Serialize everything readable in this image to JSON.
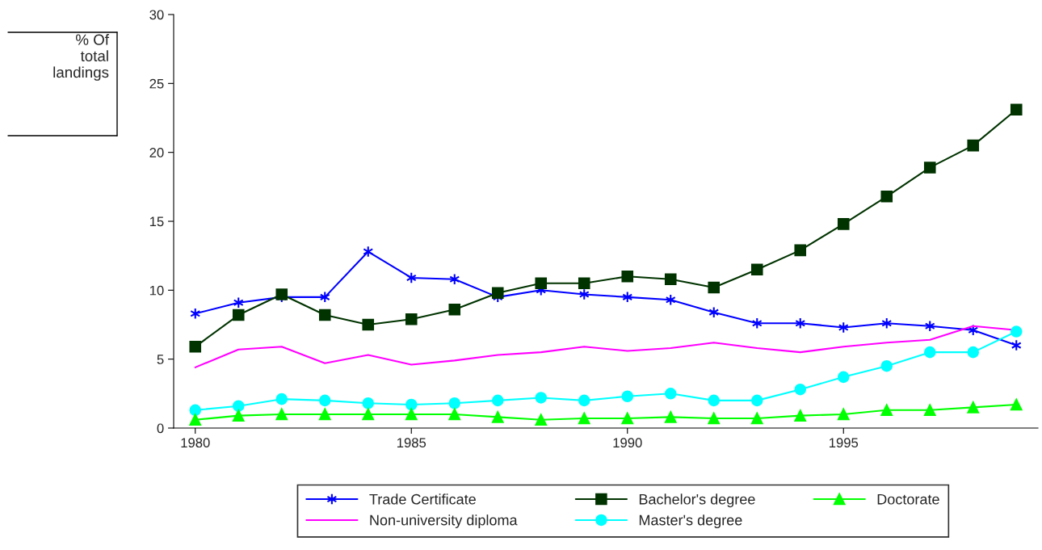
{
  "chart_data": {
    "type": "line",
    "ylabel": "% Of\ntotal\nlandings",
    "x": [
      1980,
      1981,
      1982,
      1983,
      1984,
      1985,
      1986,
      1987,
      1988,
      1989,
      1990,
      1991,
      1992,
      1993,
      1994,
      1995,
      1996,
      1997,
      1998,
      1999
    ],
    "xlim": [
      1979.5,
      1999.5
    ],
    "xticks": [
      1980,
      1985,
      1990,
      1995
    ],
    "ylim": [
      0,
      30
    ],
    "yticks": [
      0,
      5,
      10,
      15,
      20,
      25,
      30
    ],
    "grid": false,
    "legend": "bottom",
    "series": [
      {
        "name": "Trade Certificate",
        "color": "#0000ff",
        "marker": "cross",
        "values": [
          8.3,
          9.1,
          9.5,
          9.5,
          12.8,
          10.9,
          10.8,
          9.5,
          10.0,
          9.7,
          9.5,
          9.3,
          8.4,
          7.6,
          7.6,
          7.3,
          7.6,
          7.4,
          7.1,
          6.0
        ]
      },
      {
        "name": "Non-university diploma",
        "color": "#ff00ff",
        "marker": "none",
        "values": [
          4.4,
          5.7,
          5.9,
          4.7,
          5.3,
          4.6,
          4.9,
          5.3,
          5.5,
          5.9,
          5.6,
          5.8,
          6.2,
          5.8,
          5.5,
          5.9,
          6.2,
          6.4,
          7.4,
          7.1
        ]
      },
      {
        "name": "Bachelor's degree",
        "color": "#003300",
        "marker": "square",
        "values": [
          5.9,
          8.2,
          9.7,
          8.2,
          7.5,
          7.9,
          8.6,
          9.8,
          10.5,
          10.5,
          11.0,
          10.8,
          10.2,
          11.5,
          12.9,
          14.8,
          16.8,
          18.9,
          20.5,
          23.1
        ]
      },
      {
        "name": "Master's degree",
        "color": "#00ffff",
        "marker": "circle",
        "values": [
          1.3,
          1.6,
          2.1,
          2.0,
          1.8,
          1.7,
          1.8,
          2.0,
          2.2,
          2.0,
          2.3,
          2.5,
          2.0,
          2.0,
          2.8,
          3.7,
          4.5,
          5.5,
          5.5,
          7.0
        ]
      },
      {
        "name": "Doctorate",
        "color": "#00ff00",
        "marker": "triangle",
        "values": [
          0.6,
          0.9,
          1.0,
          1.0,
          1.0,
          1.0,
          1.0,
          0.8,
          0.6,
          0.7,
          0.7,
          0.8,
          0.7,
          0.7,
          0.9,
          1.0,
          1.3,
          1.3,
          1.5,
          1.7
        ]
      }
    ]
  }
}
